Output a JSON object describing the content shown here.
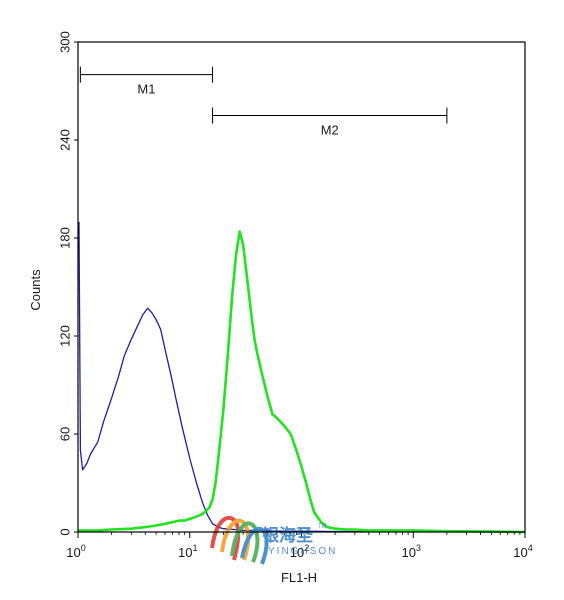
{
  "chart_data": {
    "type": "line",
    "xscale": "log",
    "xlim": [
      1,
      10000
    ],
    "ylim": [
      0,
      300
    ],
    "xlabel": "FL1-H",
    "ylabel": "Counts",
    "x_ticks": [
      {
        "base": "10",
        "exp": "0"
      },
      {
        "base": "10",
        "exp": "1"
      },
      {
        "base": "10",
        "exp": "2"
      },
      {
        "base": "10",
        "exp": "3"
      },
      {
        "base": "10",
        "exp": "4"
      }
    ],
    "y_ticks": [
      "0",
      "60",
      "120",
      "180",
      "240",
      "300"
    ],
    "markers": [
      {
        "label": "M1",
        "x_start": 1.05,
        "x_end": 16,
        "y": 280
      },
      {
        "label": "M2",
        "x_start": 16,
        "x_end": 2000,
        "y": 255
      }
    ],
    "series": [
      {
        "color": "#1f1fa0",
        "x": [
          1.02,
          1.05,
          1.1,
          1.2,
          1.3,
          1.5,
          1.7,
          2.0,
          2.3,
          2.6,
          3.0,
          3.4,
          3.8,
          4.2,
          4.6,
          5.0,
          5.5,
          6.0,
          6.8,
          7.5,
          8.5,
          10,
          11.5,
          13,
          14.5,
          16,
          18,
          20,
          25,
          30,
          40,
          60,
          100,
          200,
          500,
          1000,
          10000
        ],
        "y": [
          190,
          50,
          38,
          42,
          48,
          55,
          68,
          82,
          95,
          108,
          118,
          126,
          133,
          137,
          134,
          130,
          124,
          112,
          96,
          82,
          65,
          45,
          30,
          18,
          10,
          5,
          3,
          2,
          1.5,
          1,
          1,
          0.5,
          0.5,
          0.3,
          0.2,
          0.1,
          0
        ]
      },
      {
        "color": "#22e322",
        "x": [
          1,
          1.5,
          2,
          3,
          4,
          5,
          6,
          7,
          8,
          9,
          10,
          11,
          12,
          13,
          14,
          15,
          16,
          17,
          18,
          20,
          22,
          24,
          26,
          28,
          30,
          32,
          34,
          36,
          38,
          40,
          45,
          50,
          55,
          60,
          70,
          80,
          90,
          100,
          110,
          120,
          130,
          150,
          170,
          200,
          250,
          300,
          400,
          500,
          700,
          1000,
          2000,
          5000,
          10000
        ],
        "y": [
          1,
          1,
          1.5,
          2,
          3,
          4,
          5,
          6,
          7,
          7,
          8,
          9,
          10,
          11,
          13,
          15,
          20,
          30,
          45,
          75,
          110,
          145,
          170,
          184,
          176,
          160,
          145,
          130,
          118,
          110,
          95,
          82,
          72,
          70,
          65,
          60,
          50,
          40,
          30,
          20,
          12,
          6,
          3,
          2,
          1.5,
          1.5,
          1,
          1,
          1,
          1,
          0.5,
          0.3,
          0
        ]
      }
    ]
  },
  "watermark": {
    "cn_text": "银海圣",
    "en_text": "YINGHSON",
    "tm": "TM"
  }
}
